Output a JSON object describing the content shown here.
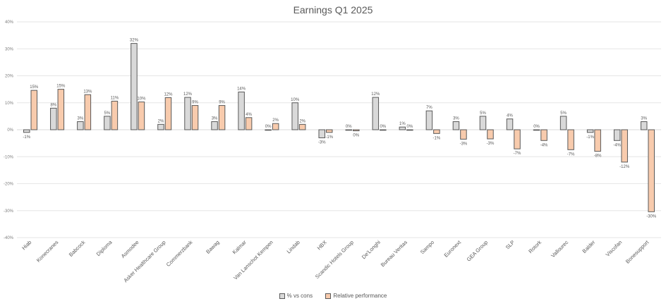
{
  "chart_data": {
    "type": "bar",
    "title": "Earnings Q1 2025",
    "xlabel": "",
    "ylabel": "",
    "ylim": [
      -40,
      40
    ],
    "yticks": [
      40,
      30,
      20,
      10,
      0,
      -10,
      -20,
      -30,
      -40
    ],
    "ytick_format": "%",
    "grid": true,
    "legend_position": "bottom",
    "categories": [
      "Hiab",
      "Konecranes",
      "Babcock",
      "Diploma",
      "Asmodee",
      "Asker Healthcare Group",
      "Commerzbank",
      "Bawag",
      "Kalmar",
      "Van Lanschot Kempen",
      "Lindab",
      "HBX",
      "Scandic Hotels Group",
      "De'Longhi",
      "Bureau Veritas",
      "Sampo",
      "Euronext",
      "GEA Group",
      "SLP",
      "Rotork",
      "Vallourec",
      "Balder",
      "Viscofan",
      "Bonesupport"
    ],
    "series": [
      {
        "name": "% vs cons",
        "color": "#d9d9d9",
        "values": [
          -1,
          8,
          3,
          5,
          32,
          2,
          12,
          3,
          14,
          0,
          10,
          -3,
          0,
          12,
          1,
          7,
          3,
          5,
          4,
          0,
          5,
          -1,
          -4,
          3
        ],
        "labels": [
          "-1%",
          "8%",
          "3%",
          "5%",
          "32%",
          "2%",
          "12%",
          "3%",
          "14%",
          "0%",
          "10%",
          "-3%",
          "0%",
          "12%",
          "1%",
          "7%",
          "3%",
          "5%",
          "4%",
          "0%",
          "5%",
          "-1%",
          "-4%",
          "3%"
        ]
      },
      {
        "name": "Relative performance",
        "color": "#f8cbad",
        "values": [
          14.6,
          15,
          13,
          10.6,
          10.3,
          11.9,
          9,
          9,
          4.5,
          2.3,
          2,
          -1,
          -0.4,
          0,
          0,
          -1.4,
          -3.5,
          -3.4,
          -7.1,
          -4,
          -7.4,
          -8,
          -12,
          -30.4
        ],
        "labels": [
          "15%",
          "15%",
          "13%",
          "11%",
          "10%",
          "12%",
          "9%",
          "9%",
          "4%",
          "2%",
          "2%",
          "-1%",
          "0%",
          "0%",
          "0%",
          "-1%",
          "-3%",
          "-3%",
          "-7%",
          "-4%",
          "-7%",
          "-8%",
          "-12%",
          "-30%"
        ]
      }
    ]
  }
}
